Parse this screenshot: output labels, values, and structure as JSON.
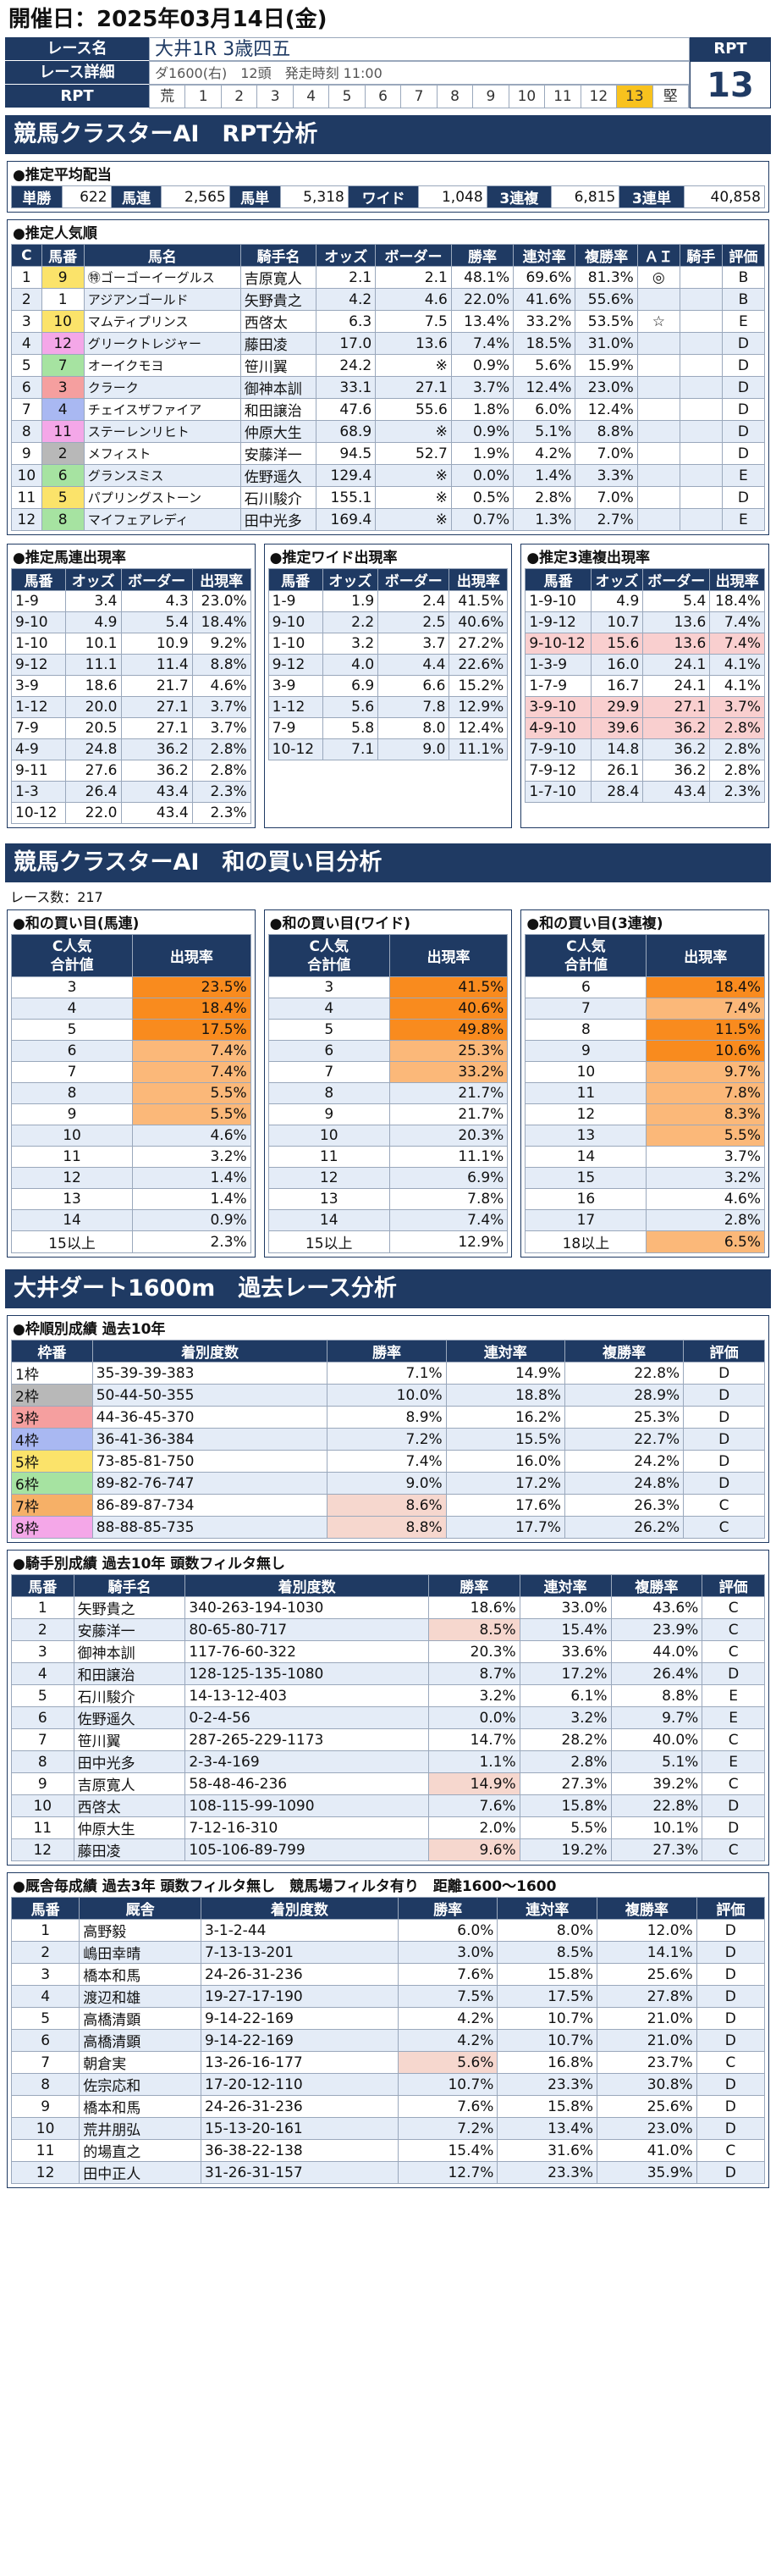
{
  "kaisai": "開催日：2025年03月14日(金)",
  "race": {
    "name_label": "レース名",
    "name_value": "大井1R 3歳四五",
    "detail_label": "レース詳細",
    "detail_value": "ダ1600(右)　12頭　発走時刻 11:00",
    "rpt_label": "RPT",
    "rpt_cells": [
      "荒",
      "1",
      "2",
      "3",
      "4",
      "5",
      "6",
      "7",
      "8",
      "9",
      "10",
      "11",
      "12",
      "13",
      "堅"
    ],
    "rpt_selected": "13",
    "rpt_head": "RPT",
    "rpt_value": "13"
  },
  "section1_title": "競馬クラスターAI　RPT分析",
  "haito": {
    "title": "●推定平均配当",
    "items": [
      {
        "label": "単勝",
        "value": "622"
      },
      {
        "label": "馬連",
        "value": "2,565"
      },
      {
        "label": "馬単",
        "value": "5,318"
      },
      {
        "label": "ワイド",
        "value": "1,048"
      },
      {
        "label": "3連複",
        "value": "6,815"
      },
      {
        "label": "3連単",
        "value": "40,858"
      }
    ]
  },
  "ninki": {
    "title": "●推定人気順",
    "headers": [
      "C",
      "馬番",
      "馬名",
      "騎手名",
      "オッズ",
      "ボーダー",
      "勝率",
      "連対率",
      "複勝率",
      "ＡＩ",
      "騎手",
      "評価"
    ],
    "rows": [
      {
        "c": "1",
        "ban": "9",
        "waku_color": "#fbe36a",
        "name": "ゴーゴーイーグルス",
        "maru": "㊕",
        "jockey": "吉原寛人",
        "odds": "2.1",
        "border": "2.1",
        "win": "48.1%",
        "ren": "69.6%",
        "fuku": "81.3%",
        "ai": "◎",
        "kishu": "",
        "hyoka": "B"
      },
      {
        "c": "2",
        "ban": "1",
        "waku_color": "#ffffff",
        "name": "アジアンゴールド",
        "jockey": "矢野貴之",
        "odds": "4.2",
        "border": "4.6",
        "win": "22.0%",
        "ren": "41.6%",
        "fuku": "55.6%",
        "ai": "",
        "kishu": "",
        "hyoka": "B"
      },
      {
        "c": "3",
        "ban": "10",
        "waku_color": "#fbe36a",
        "name": "マムティプリンス",
        "jockey": "西啓太",
        "odds": "6.3",
        "border": "7.5",
        "win": "13.4%",
        "ren": "33.2%",
        "fuku": "53.5%",
        "ai": "☆",
        "kishu": "",
        "hyoka": "E"
      },
      {
        "c": "4",
        "ban": "12",
        "waku_color": "#f4a7e8",
        "name": "グリークトレジャー",
        "jockey": "藤田凌",
        "odds": "17.0",
        "border": "13.6",
        "win": "7.4%",
        "ren": "18.5%",
        "fuku": "31.0%",
        "ai": "",
        "kishu": "",
        "hyoka": "D"
      },
      {
        "c": "5",
        "ban": "7",
        "waku_color": "#a6e3a1",
        "name": "オーイクモヨ",
        "jockey": "笹川翼",
        "odds": "24.2",
        "border": "※",
        "win": "0.9%",
        "ren": "5.6%",
        "fuku": "15.9%",
        "ai": "",
        "kishu": "",
        "hyoka": "D"
      },
      {
        "c": "6",
        "ban": "3",
        "waku_color": "#f59f9f",
        "name": "クラーク",
        "jockey": "御神本訓",
        "odds": "33.1",
        "border": "27.1",
        "win": "3.7%",
        "ren": "12.4%",
        "fuku": "23.0%",
        "ai": "",
        "kishu": "",
        "hyoka": "D"
      },
      {
        "c": "7",
        "ban": "4",
        "waku_color": "#a9b8f2",
        "name": "チェイスザファイア",
        "jockey": "和田譲治",
        "odds": "47.6",
        "border": "55.6",
        "win": "1.8%",
        "ren": "6.0%",
        "fuku": "12.4%",
        "ai": "",
        "kishu": "",
        "hyoka": "D"
      },
      {
        "c": "8",
        "ban": "11",
        "waku_color": "#f4a7e8",
        "name": "ステーレンリヒト",
        "jockey": "仲原大生",
        "odds": "68.9",
        "border": "※",
        "win": "0.9%",
        "ren": "5.1%",
        "fuku": "8.8%",
        "ai": "",
        "kishu": "",
        "hyoka": "D"
      },
      {
        "c": "9",
        "ban": "2",
        "waku_color": "#b8b8b8",
        "name": "メフィスト",
        "jockey": "安藤洋一",
        "odds": "94.5",
        "border": "52.7",
        "win": "1.9%",
        "ren": "4.2%",
        "fuku": "7.0%",
        "ai": "",
        "kishu": "",
        "hyoka": "D"
      },
      {
        "c": "10",
        "ban": "6",
        "waku_color": "#a6e3a1",
        "name": "グランスミス",
        "jockey": "佐野遥久",
        "odds": "129.4",
        "border": "※",
        "win": "0.0%",
        "ren": "1.4%",
        "fuku": "3.3%",
        "ai": "",
        "kishu": "",
        "hyoka": "E"
      },
      {
        "c": "11",
        "ban": "5",
        "waku_color": "#fbe36a",
        "name": "パプリングストーン",
        "jockey": "石川駿介",
        "odds": "155.1",
        "border": "※",
        "win": "0.5%",
        "ren": "2.8%",
        "fuku": "7.0%",
        "ai": "",
        "kishu": "",
        "hyoka": "D"
      },
      {
        "c": "12",
        "ban": "8",
        "waku_color": "#a6e3a1",
        "name": "マイフェアレディ",
        "jockey": "田中光多",
        "odds": "169.4",
        "border": "※",
        "win": "0.7%",
        "ren": "1.3%",
        "fuku": "2.7%",
        "ai": "",
        "kishu": "",
        "hyoka": "E"
      }
    ]
  },
  "umaren": {
    "title": "●推定馬連出現率",
    "headers": [
      "馬番",
      "オッズ",
      "ボーダー",
      "出現率"
    ],
    "rows": [
      [
        "1-9",
        "3.4",
        "4.3",
        "23.0%"
      ],
      [
        "9-10",
        "4.9",
        "5.4",
        "18.4%"
      ],
      [
        "1-10",
        "10.1",
        "10.9",
        "9.2%"
      ],
      [
        "9-12",
        "11.1",
        "11.4",
        "8.8%"
      ],
      [
        "3-9",
        "18.6",
        "21.7",
        "4.6%"
      ],
      [
        "1-12",
        "20.0",
        "27.1",
        "3.7%"
      ],
      [
        "7-9",
        "20.5",
        "27.1",
        "3.7%"
      ],
      [
        "4-9",
        "24.8",
        "36.2",
        "2.8%"
      ],
      [
        "9-11",
        "27.6",
        "36.2",
        "2.8%"
      ],
      [
        "1-3",
        "26.4",
        "43.4",
        "2.3%"
      ],
      [
        "10-12",
        "22.0",
        "43.4",
        "2.3%"
      ]
    ]
  },
  "wide": {
    "title": "●推定ワイド出現率",
    "headers": [
      "馬番",
      "オッズ",
      "ボーダー",
      "出現率"
    ],
    "rows": [
      [
        "1-9",
        "1.9",
        "2.4",
        "41.5%"
      ],
      [
        "9-10",
        "2.2",
        "2.5",
        "40.6%"
      ],
      [
        "1-10",
        "3.2",
        "3.7",
        "27.2%"
      ],
      [
        "9-12",
        "4.0",
        "4.4",
        "22.6%"
      ],
      [
        "3-9",
        "6.9",
        "6.6",
        "15.2%"
      ],
      [
        "1-12",
        "5.6",
        "7.8",
        "12.9%"
      ],
      [
        "7-9",
        "5.8",
        "8.0",
        "12.4%"
      ],
      [
        "10-12",
        "7.1",
        "9.0",
        "11.1%"
      ]
    ]
  },
  "sanrenpuku": {
    "title": "●推定3連複出現率",
    "headers": [
      "馬番",
      "オッズ",
      "ボーダー",
      "出現率"
    ],
    "rows": [
      [
        "1-9-10",
        "4.9",
        "5.4",
        "18.4%"
      ],
      [
        "1-9-12",
        "10.7",
        "13.6",
        "7.4%"
      ],
      [
        "9-10-12",
        "15.6",
        "13.6",
        "7.4%"
      ],
      [
        "1-3-9",
        "16.0",
        "24.1",
        "4.1%"
      ],
      [
        "1-7-9",
        "16.7",
        "24.1",
        "4.1%"
      ],
      [
        "3-9-10",
        "29.9",
        "27.1",
        "3.7%"
      ],
      [
        "4-9-10",
        "39.6",
        "36.2",
        "2.8%"
      ],
      [
        "7-9-10",
        "14.8",
        "36.2",
        "2.8%"
      ],
      [
        "7-9-12",
        "26.1",
        "36.2",
        "2.8%"
      ],
      [
        "1-7-10",
        "28.4",
        "43.4",
        "2.3%"
      ]
    ],
    "pink_rows": [
      2,
      5,
      6
    ]
  },
  "section2_title": "競馬クラスターAI　和の買い目分析",
  "race_count": "レース数：217",
  "wa_umaren": {
    "title": "●和の買い目(馬連)",
    "head1": "C人気",
    "head2": "合計値",
    "head3": "出現率",
    "rows": [
      [
        "3",
        "23.5%"
      ],
      [
        "4",
        "18.4%"
      ],
      [
        "5",
        "17.5%"
      ],
      [
        "6",
        "7.4%"
      ],
      [
        "7",
        "7.4%"
      ],
      [
        "8",
        "5.5%"
      ],
      [
        "9",
        "5.5%"
      ],
      [
        "10",
        "4.6%"
      ],
      [
        "11",
        "3.2%"
      ],
      [
        "12",
        "1.4%"
      ],
      [
        "13",
        "1.4%"
      ],
      [
        "14",
        "0.9%"
      ],
      [
        "15以上",
        "2.3%"
      ]
    ],
    "levels": [
      1,
      1,
      1,
      2,
      2,
      2,
      2,
      0,
      0,
      0,
      0,
      0,
      0
    ]
  },
  "wa_wide": {
    "title": "●和の買い目(ワイド)",
    "head1": "C人気",
    "head2": "合計値",
    "head3": "出現率",
    "rows": [
      [
        "3",
        "41.5%"
      ],
      [
        "4",
        "40.6%"
      ],
      [
        "5",
        "49.8%"
      ],
      [
        "6",
        "25.3%"
      ],
      [
        "7",
        "33.2%"
      ],
      [
        "8",
        "21.7%"
      ],
      [
        "9",
        "21.7%"
      ],
      [
        "10",
        "20.3%"
      ],
      [
        "11",
        "11.1%"
      ],
      [
        "12",
        "6.9%"
      ],
      [
        "13",
        "7.8%"
      ],
      [
        "14",
        "7.4%"
      ],
      [
        "15以上",
        "12.9%"
      ]
    ],
    "levels": [
      1,
      1,
      1,
      2,
      2,
      0,
      0,
      0,
      0,
      0,
      0,
      0,
      0
    ]
  },
  "wa_3renpuku": {
    "title": "●和の買い目(3連複)",
    "head1": "C人気",
    "head2": "合計値",
    "head3": "出現率",
    "rows": [
      [
        "6",
        "18.4%"
      ],
      [
        "7",
        "7.4%"
      ],
      [
        "8",
        "11.5%"
      ],
      [
        "9",
        "10.6%"
      ],
      [
        "10",
        "9.7%"
      ],
      [
        "11",
        "7.8%"
      ],
      [
        "12",
        "8.3%"
      ],
      [
        "13",
        "5.5%"
      ],
      [
        "14",
        "3.7%"
      ],
      [
        "15",
        "3.2%"
      ],
      [
        "16",
        "4.6%"
      ],
      [
        "17",
        "2.8%"
      ],
      [
        "18以上",
        "6.5%"
      ]
    ],
    "levels": [
      1,
      2,
      1,
      1,
      2,
      2,
      2,
      2,
      0,
      0,
      0,
      0,
      2
    ]
  },
  "section3_title": "大井ダート1600m　過去レース分析",
  "waku_stats": {
    "title": "●枠順別成績 過去10年",
    "headers": [
      "枠番",
      "着別度数",
      "勝率",
      "連対率",
      "複勝率",
      "評価"
    ],
    "rows": [
      {
        "waku": "1枠",
        "color": "#ffffff",
        "dosu": "35-39-39-383",
        "win": "7.1%",
        "ren": "14.9%",
        "fuku": "22.8%",
        "hyoka": "D",
        "hl": false
      },
      {
        "waku": "2枠",
        "color": "#b8b8b8",
        "dosu": "50-44-50-355",
        "win": "10.0%",
        "ren": "18.8%",
        "fuku": "28.9%",
        "hyoka": "D",
        "hl": false
      },
      {
        "waku": "3枠",
        "color": "#f59f9f",
        "dosu": "44-36-45-370",
        "win": "8.9%",
        "ren": "16.2%",
        "fuku": "25.3%",
        "hyoka": "D",
        "hl": false
      },
      {
        "waku": "4枠",
        "color": "#a9b8f2",
        "dosu": "36-41-36-384",
        "win": "7.2%",
        "ren": "15.5%",
        "fuku": "22.7%",
        "hyoka": "D",
        "hl": false
      },
      {
        "waku": "5枠",
        "color": "#fbe36a",
        "dosu": "73-85-81-750",
        "win": "7.4%",
        "ren": "16.0%",
        "fuku": "24.2%",
        "hyoka": "D",
        "hl": false
      },
      {
        "waku": "6枠",
        "color": "#a6e3a1",
        "dosu": "89-82-76-747",
        "win": "9.0%",
        "ren": "17.2%",
        "fuku": "24.8%",
        "hyoka": "D",
        "hl": false
      },
      {
        "waku": "7枠",
        "color": "#f6b067",
        "dosu": "86-89-87-734",
        "win": "8.6%",
        "ren": "17.6%",
        "fuku": "26.3%",
        "hyoka": "C",
        "hl": true
      },
      {
        "waku": "8枠",
        "color": "#f4a7e8",
        "dosu": "88-88-85-735",
        "win": "8.8%",
        "ren": "17.7%",
        "fuku": "26.2%",
        "hyoka": "C",
        "hl": true
      }
    ]
  },
  "jockey_stats": {
    "title": "●騎手別成績 過去10年 頭数フィルタ無し",
    "headers": [
      "馬番",
      "騎手名",
      "着別度数",
      "勝率",
      "連対率",
      "複勝率",
      "評価"
    ],
    "rows": [
      [
        "1",
        "矢野貴之",
        "340-263-194-1030",
        "18.6%",
        "33.0%",
        "43.6%",
        "C"
      ],
      [
        "2",
        "安藤洋一",
        "80-65-80-717",
        "8.5%",
        "15.4%",
        "23.9%",
        "C"
      ],
      [
        "3",
        "御神本訓",
        "117-76-60-322",
        "20.3%",
        "33.6%",
        "44.0%",
        "C"
      ],
      [
        "4",
        "和田譲治",
        "128-125-135-1080",
        "8.7%",
        "17.2%",
        "26.4%",
        "D"
      ],
      [
        "5",
        "石川駿介",
        "14-13-12-403",
        "3.2%",
        "6.1%",
        "8.8%",
        "E"
      ],
      [
        "6",
        "佐野遥久",
        "0-2-4-56",
        "0.0%",
        "3.2%",
        "9.7%",
        "E"
      ],
      [
        "7",
        "笹川翼",
        "287-265-229-1173",
        "14.7%",
        "28.2%",
        "40.0%",
        "C"
      ],
      [
        "8",
        "田中光多",
        "2-3-4-169",
        "1.1%",
        "2.8%",
        "5.1%",
        "E"
      ],
      [
        "9",
        "吉原寛人",
        "58-48-46-236",
        "14.9%",
        "27.3%",
        "39.2%",
        "C"
      ],
      [
        "10",
        "西啓太",
        "108-115-99-1090",
        "7.6%",
        "15.8%",
        "22.8%",
        "D"
      ],
      [
        "11",
        "仲原大生",
        "7-12-16-310",
        "2.0%",
        "5.5%",
        "10.1%",
        "D"
      ],
      [
        "12",
        "藤田凌",
        "105-106-89-799",
        "9.6%",
        "19.2%",
        "27.3%",
        "C"
      ]
    ],
    "hl_rows": [
      1,
      8,
      11
    ]
  },
  "chokyo_stats": {
    "title": "●厩舎毎成績 過去3年 頭数フィルタ無し　競馬場フィルタ有り　距離1600～1600",
    "headers": [
      "馬番",
      "厩舎",
      "着別度数",
      "勝率",
      "連対率",
      "複勝率",
      "評価"
    ],
    "rows": [
      [
        "1",
        "高野毅",
        "3-1-2-44",
        "6.0%",
        "8.0%",
        "12.0%",
        "D"
      ],
      [
        "2",
        "嶋田幸晴",
        "7-13-13-201",
        "3.0%",
        "8.5%",
        "14.1%",
        "D"
      ],
      [
        "3",
        "橋本和馬",
        "24-26-31-236",
        "7.6%",
        "15.8%",
        "25.6%",
        "D"
      ],
      [
        "4",
        "渡辺和雄",
        "19-27-17-190",
        "7.5%",
        "17.5%",
        "27.8%",
        "D"
      ],
      [
        "5",
        "高橋清顕",
        "9-14-22-169",
        "4.2%",
        "10.7%",
        "21.0%",
        "D"
      ],
      [
        "6",
        "高橋清顕",
        "9-14-22-169",
        "4.2%",
        "10.7%",
        "21.0%",
        "D"
      ],
      [
        "7",
        "朝倉実",
        "13-26-16-177",
        "5.6%",
        "16.8%",
        "23.7%",
        "C"
      ],
      [
        "8",
        "佐宗応和",
        "17-20-12-110",
        "10.7%",
        "23.3%",
        "30.8%",
        "D"
      ],
      [
        "9",
        "橋本和馬",
        "24-26-31-236",
        "7.6%",
        "15.8%",
        "25.6%",
        "D"
      ],
      [
        "10",
        "荒井朋弘",
        "15-13-20-161",
        "7.2%",
        "13.4%",
        "23.0%",
        "D"
      ],
      [
        "11",
        "的場直之",
        "36-38-22-138",
        "15.4%",
        "31.6%",
        "41.0%",
        "C"
      ],
      [
        "12",
        "田中正人",
        "31-26-31-157",
        "12.7%",
        "23.3%",
        "35.9%",
        "D"
      ]
    ],
    "hl_rows": [
      6
    ]
  }
}
